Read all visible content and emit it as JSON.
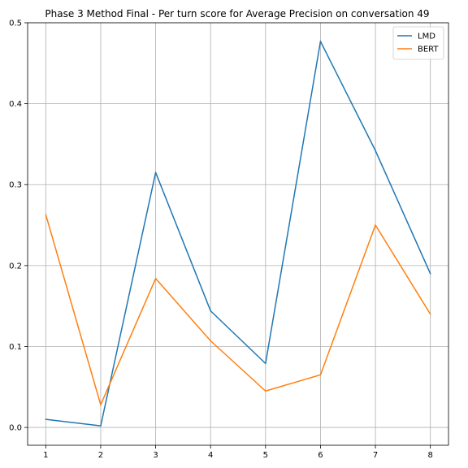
{
  "chart_data": {
    "type": "line",
    "title": "Phase 3 Method Final - Per turn score for Average Precision on conversation 49",
    "xlabel": "",
    "ylabel": "",
    "x": [
      1,
      2,
      3,
      4,
      5,
      6,
      7,
      8
    ],
    "xticks": [
      "1",
      "2",
      "3",
      "4",
      "5",
      "6",
      "7",
      "8"
    ],
    "yticks": [
      "0.0",
      "0.1",
      "0.2",
      "0.3",
      "0.4",
      "0.5"
    ],
    "xlim": [
      0.67,
      8.33
    ],
    "ylim": [
      -0.022,
      0.5
    ],
    "grid": true,
    "legend_position": "top-right",
    "series": [
      {
        "name": "LMD",
        "color": "#1f77b4",
        "values": [
          0.01,
          0.002,
          0.315,
          0.144,
          0.079,
          0.477,
          0.342,
          0.19
        ]
      },
      {
        "name": "BERT",
        "color": "#ff7f0e",
        "values": [
          0.263,
          0.028,
          0.184,
          0.107,
          0.045,
          0.065,
          0.25,
          0.14
        ]
      }
    ]
  }
}
